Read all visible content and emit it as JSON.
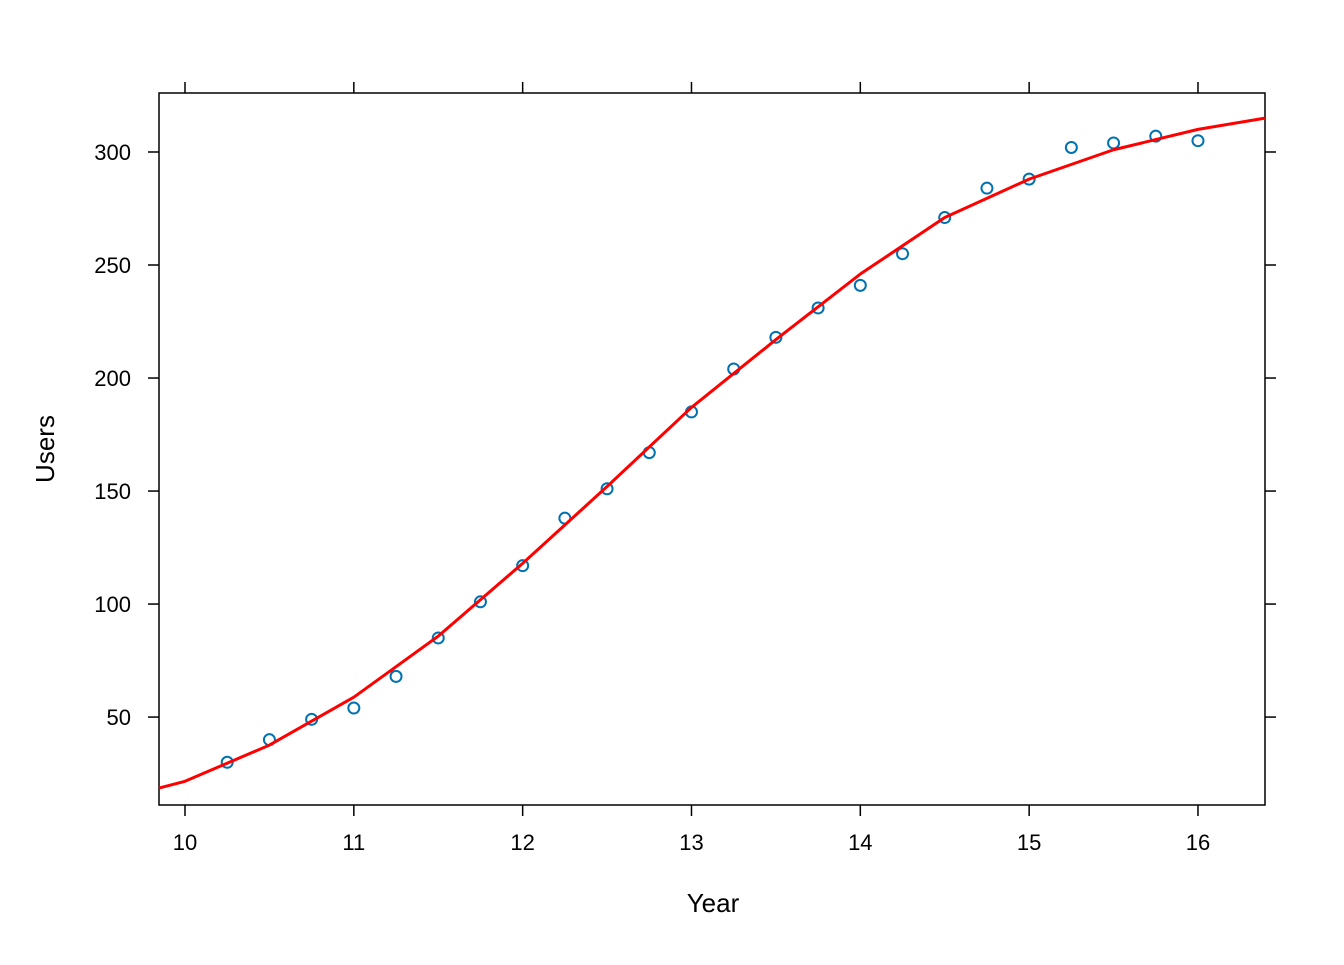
{
  "chart_data": {
    "type": "scatter",
    "xlabel": "Year",
    "ylabel": "Users",
    "x": [
      10.25,
      10.5,
      10.75,
      11,
      11.25,
      11.5,
      11.75,
      12,
      12.25,
      12.5,
      12.75,
      13,
      13.25,
      13.5,
      13.75,
      14,
      14.25,
      14.5,
      14.75,
      15,
      15.25,
      15.5,
      15.75,
      16
    ],
    "values": [
      30,
      40,
      49,
      54,
      68,
      85,
      101,
      117,
      138,
      151,
      167,
      185,
      204,
      218,
      231,
      241,
      255,
      271,
      284,
      288,
      302,
      304,
      307,
      305
    ],
    "color": "#0072b2",
    "fit": {
      "color": "#ff0000",
      "x": [
        9.846,
        10,
        10.5,
        11,
        11.5,
        12,
        12.5,
        13,
        13.5,
        14,
        14.5,
        15,
        15.5,
        16,
        16.397
      ],
      "values": [
        18.6,
        21.6,
        37.6,
        58.8,
        85.8,
        118,
        152,
        187,
        217,
        246,
        271,
        288,
        301,
        310,
        315
      ]
    },
    "xlim": [
      9.846,
      16.397
    ],
    "ylim": [
      11.1,
      326.1
    ],
    "xticks": [
      10,
      11,
      12,
      13,
      14,
      15,
      16
    ],
    "yticks": [
      50,
      100,
      150,
      200,
      250,
      300
    ]
  }
}
